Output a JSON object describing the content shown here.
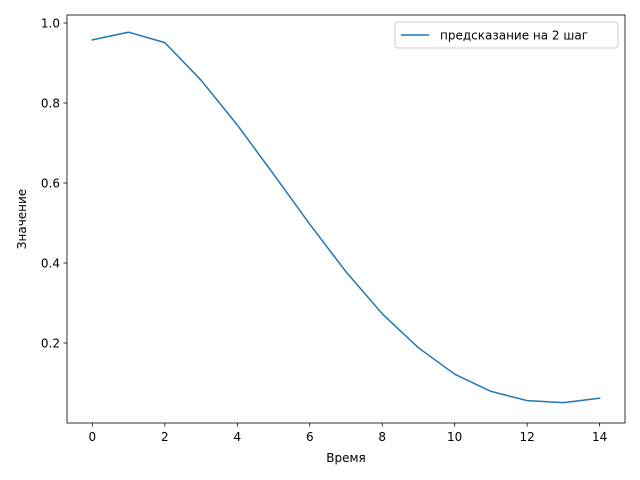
{
  "chart_data": {
    "type": "line",
    "title": "",
    "xlabel": "Время",
    "ylabel": "Значение",
    "xlim": [
      -0.7,
      14.7
    ],
    "ylim": [
      0.0,
      1.02
    ],
    "x_ticks": [
      0,
      2,
      4,
      6,
      8,
      10,
      12,
      14
    ],
    "y_ticks": [
      0.2,
      0.4,
      0.6,
      0.8,
      1.0
    ],
    "y_tick_labels": [
      "0.2",
      "0.4",
      "0.6",
      "0.8",
      "1.0"
    ],
    "grid": false,
    "legend_position": "top-right",
    "series": [
      {
        "name": "предсказание на 2 шаг",
        "color": "#1f77b4",
        "x": [
          0,
          1,
          2,
          3,
          4,
          5,
          6,
          7,
          8,
          9,
          10,
          11,
          12,
          13,
          14
        ],
        "values": [
          0.958,
          0.977,
          0.951,
          0.857,
          0.745,
          0.622,
          0.497,
          0.378,
          0.273,
          0.188,
          0.122,
          0.079,
          0.056,
          0.051,
          0.062
        ]
      }
    ]
  }
}
